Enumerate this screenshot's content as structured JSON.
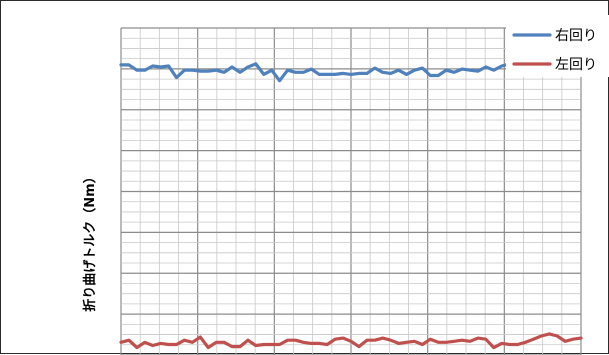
{
  "chart_data": {
    "type": "line",
    "title": "",
    "xlabel": "",
    "ylabel": "折り曲げトルク（Nm）",
    "grid": true,
    "legend_position": "top-right",
    "x": [
      0,
      1,
      2,
      3,
      4,
      5,
      6,
      7,
      8,
      9,
      10,
      11,
      12,
      13,
      14,
      15,
      16,
      17,
      18,
      19,
      20,
      21,
      22,
      23,
      24,
      25,
      26,
      27,
      28,
      29,
      30,
      31,
      32,
      33,
      34,
      35,
      36,
      37,
      38,
      39,
      40,
      41,
      42,
      43,
      44,
      45,
      46,
      47,
      48,
      49,
      50,
      51,
      52,
      53,
      54,
      55,
      56,
      57,
      58
    ],
    "series": [
      {
        "name": "右回り",
        "color": "#4f81bd",
        "values": [
          14.5,
          14.5,
          14.0,
          14.0,
          14.4,
          14.3,
          14.4,
          13.3,
          14.0,
          14.0,
          13.9,
          13.9,
          14.0,
          13.8,
          14.3,
          13.8,
          14.3,
          14.6,
          13.6,
          14.0,
          13.0,
          14.0,
          13.8,
          13.8,
          14.1,
          13.6,
          13.6,
          13.6,
          13.7,
          13.6,
          13.7,
          13.7,
          14.2,
          13.8,
          13.7,
          14.0,
          13.6,
          14.0,
          14.2,
          13.5,
          13.5,
          14.0,
          13.8,
          14.1,
          14.0,
          13.9,
          14.3,
          14.0,
          14.4,
          14.6,
          14.3,
          14.0,
          13.8,
          13.7,
          null,
          null,
          null,
          null,
          null
        ]
      },
      {
        "name": "左回り",
        "color": "#c0504d",
        "values": [
          -11.8,
          -11.6,
          -12.3,
          -11.8,
          -12.1,
          -11.9,
          -12.0,
          -12.0,
          -11.6,
          -11.8,
          -11.3,
          -12.3,
          -11.8,
          -11.8,
          -12.2,
          -12.2,
          -11.6,
          -12.1,
          -12.0,
          -12.0,
          -12.0,
          -11.6,
          -11.6,
          -11.8,
          -11.9,
          -11.9,
          -12.0,
          -11.5,
          -11.4,
          -11.7,
          -12.2,
          -11.6,
          -11.6,
          -11.4,
          -11.6,
          -11.9,
          -11.8,
          -11.7,
          -12.0,
          -11.5,
          -11.8,
          -11.8,
          -11.7,
          -11.6,
          -11.7,
          -11.4,
          -11.5,
          -12.3,
          -11.9,
          -12.0,
          -12.0,
          -11.8,
          -11.5,
          -11.2,
          -11.0,
          -11.2,
          -11.7,
          -11.5,
          -11.4
        ]
      }
    ],
    "xlim": [
      0,
      58
    ],
    "ylim": [
      -13,
      18
    ]
  }
}
